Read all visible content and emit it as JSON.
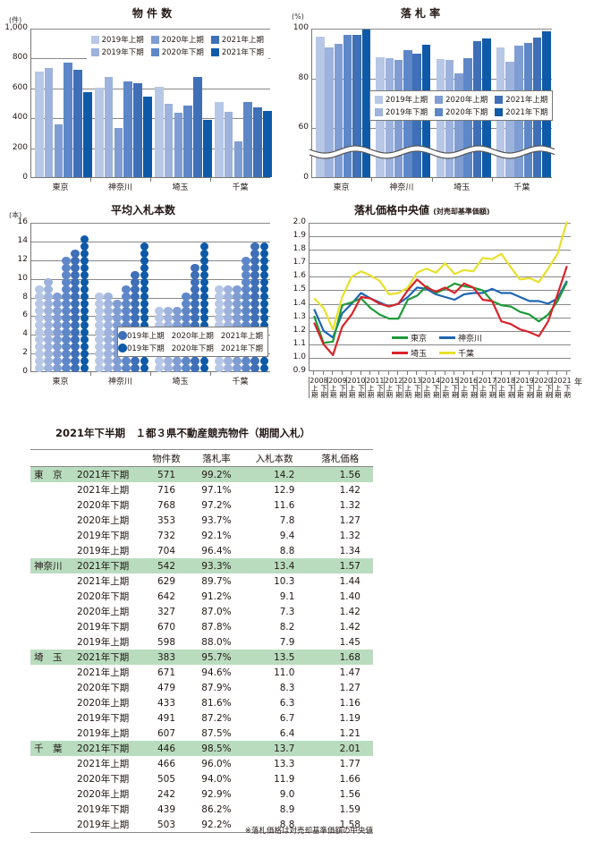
{
  "charts": {
    "count": {
      "title": "物 件 数",
      "unit": "(件)",
      "yticks": [
        "1,000",
        "800",
        "600",
        "400",
        "200",
        "0"
      ]
    },
    "rate": {
      "title": "落 札 率",
      "unit": "(%)",
      "yticks": [
        "100",
        "80",
        "60",
        "0"
      ]
    },
    "bids": {
      "title": "平均入札本数",
      "unit": "(本)",
      "yticks": [
        "16",
        "14",
        "12",
        "10",
        "8",
        "6",
        "4",
        "2",
        "0"
      ]
    },
    "price": {
      "title": "落札価格中央値",
      "subtitle": "(対売却基準価額)",
      "yticks": [
        "2.0",
        "1.9",
        "1.8",
        "1.7",
        "1.6",
        "1.5",
        "1.4",
        "1.3",
        "1.2",
        "1.1",
        "1.0",
        "0.9"
      ],
      "year_suffix": "年",
      "half_labels": [
        "上期",
        "下期"
      ]
    }
  },
  "legend_periods": [
    "2019年上期",
    "2019年下期",
    "2020年上期",
    "2020年下期",
    "2021年上期",
    "2021年下期"
  ],
  "period_colors": [
    "#b7c7e6",
    "#9db2dc",
    "#7f9dd2",
    "#5e87c8",
    "#3e6fb7",
    "#0e5aa8"
  ],
  "prefectures": [
    "東京",
    "神奈川",
    "埼玉",
    "千葉"
  ],
  "line_colors": {
    "東京": "#1e9a3a",
    "神奈川": "#1f66b3",
    "埼玉": "#d8232a",
    "千葉": "#e8e02a"
  },
  "chart_data": [
    {
      "type": "bar",
      "title": "物件数",
      "ylabel": "(件)",
      "ylim": [
        0,
        1000
      ],
      "categories": [
        "東京",
        "神奈川",
        "埼玉",
        "千葉"
      ],
      "series": [
        {
          "name": "2019年上期",
          "values": [
            704,
            598,
            607,
            503
          ]
        },
        {
          "name": "2019年下期",
          "values": [
            732,
            670,
            491,
            439
          ]
        },
        {
          "name": "2020年上期",
          "values": [
            353,
            327,
            433,
            242
          ]
        },
        {
          "name": "2020年下期",
          "values": [
            768,
            642,
            479,
            505
          ]
        },
        {
          "name": "2021年上期",
          "values": [
            716,
            629,
            671,
            466
          ]
        },
        {
          "name": "2021年下期",
          "values": [
            571,
            542,
            383,
            446
          ]
        }
      ],
      "grid": true,
      "legend_position": "top-right"
    },
    {
      "type": "bar",
      "title": "落札率",
      "ylabel": "(%)",
      "ylim": [
        0,
        100
      ],
      "axis_break": [
        0,
        50
      ],
      "categories": [
        "東京",
        "神奈川",
        "埼玉",
        "千葉"
      ],
      "series": [
        {
          "name": "2019年上期",
          "values": [
            96.4,
            88.0,
            87.5,
            92.2
          ]
        },
        {
          "name": "2019年下期",
          "values": [
            92.1,
            87.8,
            87.2,
            86.2
          ]
        },
        {
          "name": "2020年上期",
          "values": [
            93.7,
            87.0,
            81.6,
            92.9
          ]
        },
        {
          "name": "2020年下期",
          "values": [
            97.2,
            91.2,
            87.9,
            94.0
          ]
        },
        {
          "name": "2021年上期",
          "values": [
            97.1,
            89.7,
            94.6,
            96.0
          ]
        },
        {
          "name": "2021年下期",
          "values": [
            99.2,
            93.3,
            95.7,
            98.5
          ]
        }
      ],
      "grid": true,
      "legend_position": "center"
    },
    {
      "type": "bar",
      "title": "平均入札本数",
      "ylabel": "(本)",
      "ylim": [
        0,
        16
      ],
      "categories": [
        "東京",
        "神奈川",
        "埼玉",
        "千葉"
      ],
      "series": [
        {
          "name": "2019年上期",
          "values": [
            8.8,
            7.9,
            6.4,
            8.8
          ]
        },
        {
          "name": "2019年下期",
          "values": [
            9.4,
            8.2,
            6.7,
            8.9
          ]
        },
        {
          "name": "2020年上期",
          "values": [
            7.8,
            7.3,
            6.3,
            9.0
          ]
        },
        {
          "name": "2020年下期",
          "values": [
            11.6,
            9.1,
            8.3,
            11.9
          ]
        },
        {
          "name": "2021年上期",
          "values": [
            12.9,
            10.3,
            11.0,
            13.3
          ]
        },
        {
          "name": "2021年下期",
          "values": [
            14.2,
            13.4,
            13.5,
            13.7
          ]
        }
      ],
      "grid": true,
      "legend_position": "lower-right"
    },
    {
      "type": "line",
      "title": "落札価格中央値",
      "subtitle": "(対売却基準価額)",
      "ylim": [
        0.9,
        2.0
      ],
      "x": [
        "2008上期",
        "2008下期",
        "2009上期",
        "2009下期",
        "2010上期",
        "2010下期",
        "2011上期",
        "2011下期",
        "2012上期",
        "2012下期",
        "2013上期",
        "2013下期",
        "2014上期",
        "2014下期",
        "2015上期",
        "2015下期",
        "2016上期",
        "2016下期",
        "2017上期",
        "2017下期",
        "2018上期",
        "2018下期",
        "2019上期",
        "2019下期",
        "2020上期",
        "2020下期",
        "2021上期",
        "2021下期"
      ],
      "series": [
        {
          "name": "東京",
          "values": [
            1.31,
            1.11,
            1.12,
            1.39,
            1.41,
            1.44,
            1.37,
            1.32,
            1.29,
            1.29,
            1.43,
            1.46,
            1.53,
            1.48,
            1.51,
            1.55,
            1.53,
            1.52,
            1.5,
            1.42,
            1.39,
            1.38,
            1.34,
            1.32,
            1.27,
            1.32,
            1.42,
            1.56
          ]
        },
        {
          "name": "神奈川",
          "values": [
            1.36,
            1.2,
            1.15,
            1.33,
            1.4,
            1.48,
            1.44,
            1.41,
            1.38,
            1.4,
            1.45,
            1.52,
            1.51,
            1.47,
            1.45,
            1.43,
            1.47,
            1.48,
            1.48,
            1.51,
            1.48,
            1.48,
            1.45,
            1.42,
            1.42,
            1.4,
            1.44,
            1.57
          ]
        },
        {
          "name": "埼玉",
          "values": [
            1.26,
            1.1,
            1.02,
            1.23,
            1.32,
            1.45,
            1.44,
            1.4,
            1.38,
            1.4,
            1.5,
            1.58,
            1.52,
            1.49,
            1.52,
            1.48,
            1.55,
            1.52,
            1.43,
            1.42,
            1.27,
            1.25,
            1.21,
            1.19,
            1.16,
            1.27,
            1.47,
            1.68
          ]
        },
        {
          "name": "千葉",
          "values": [
            1.44,
            1.37,
            1.21,
            1.45,
            1.6,
            1.64,
            1.61,
            1.57,
            1.47,
            1.48,
            1.52,
            1.63,
            1.66,
            1.63,
            1.7,
            1.62,
            1.65,
            1.64,
            1.74,
            1.73,
            1.77,
            1.67,
            1.58,
            1.59,
            1.56,
            1.66,
            1.77,
            2.01
          ]
        }
      ],
      "grid": true,
      "legend_position": "lower-center"
    },
    {
      "type": "table",
      "title": "2021年下半期 1都3県不動産競売物件（期間入札）",
      "columns": [
        "",
        "",
        "物件数",
        "落札率",
        "入札本数",
        "落札価格"
      ],
      "rows": "see table.groups"
    }
  ],
  "years": [
    "2008",
    "2009",
    "2010",
    "2011",
    "2012",
    "2013",
    "2014",
    "2015",
    "2016",
    "2017",
    "2018",
    "2019",
    "2020",
    "2021"
  ],
  "table": {
    "title": "2021年下半期　１都３県不動産競売物件（期間入札）",
    "headers": [
      "物件数",
      "落札率",
      "入札本数",
      "落札価格"
    ],
    "groups": [
      {
        "pref": "東　京",
        "rows": [
          [
            "2021年下期",
            "571",
            "99.2%",
            "14.2",
            "1.56"
          ],
          [
            "2021年上期",
            "716",
            "97.1%",
            "12.9",
            "1.42"
          ],
          [
            "2020年下期",
            "768",
            "97.2%",
            "11.6",
            "1.32"
          ],
          [
            "2020年上期",
            "353",
            "93.7%",
            "7.8",
            "1.27"
          ],
          [
            "2019年下期",
            "732",
            "92.1%",
            "9.4",
            "1.32"
          ],
          [
            "2019年上期",
            "704",
            "96.4%",
            "8.8",
            "1.34"
          ]
        ]
      },
      {
        "pref": "神奈川",
        "rows": [
          [
            "2021年下期",
            "542",
            "93.3%",
            "13.4",
            "1.57"
          ],
          [
            "2021年上期",
            "629",
            "89.7%",
            "10.3",
            "1.44"
          ],
          [
            "2020年下期",
            "642",
            "91.2%",
            "9.1",
            "1.40"
          ],
          [
            "2020年上期",
            "327",
            "87.0%",
            "7.3",
            "1.42"
          ],
          [
            "2019年下期",
            "670",
            "87.8%",
            "8.2",
            "1.42"
          ],
          [
            "2019年上期",
            "598",
            "88.0%",
            "7.9",
            "1.45"
          ]
        ]
      },
      {
        "pref": "埼　玉",
        "rows": [
          [
            "2021年下期",
            "383",
            "95.7%",
            "13.5",
            "1.68"
          ],
          [
            "2021年上期",
            "671",
            "94.6%",
            "11.0",
            "1.47"
          ],
          [
            "2020年下期",
            "479",
            "87.9%",
            "8.3",
            "1.27"
          ],
          [
            "2020年上期",
            "433",
            "81.6%",
            "6.3",
            "1.16"
          ],
          [
            "2019年下期",
            "491",
            "87.2%",
            "6.7",
            "1.19"
          ],
          [
            "2019年上期",
            "607",
            "87.5%",
            "6.4",
            "1.21"
          ]
        ]
      },
      {
        "pref": "千　葉",
        "rows": [
          [
            "2021年下期",
            "446",
            "98.5%",
            "13.7",
            "2.01"
          ],
          [
            "2021年上期",
            "466",
            "96.0%",
            "13.3",
            "1.77"
          ],
          [
            "2020年下期",
            "505",
            "94.0%",
            "11.9",
            "1.66"
          ],
          [
            "2020年上期",
            "242",
            "92.9%",
            "9.0",
            "1.56"
          ],
          [
            "2019年下期",
            "439",
            "86.2%",
            "8.9",
            "1.59"
          ],
          [
            "2019年上期",
            "503",
            "92.2%",
            "8.8",
            "1.58"
          ]
        ]
      }
    ],
    "footnote": "※落札価格は対売却基準価額の中央値"
  }
}
